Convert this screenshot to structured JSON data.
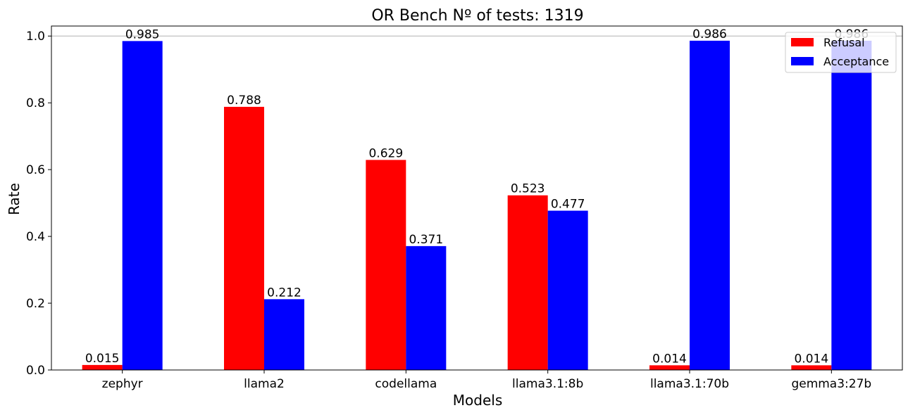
{
  "chart_data": {
    "type": "bar",
    "title": "OR Bench Nº of tests: 1319",
    "xlabel": "Models",
    "ylabel": "Rate",
    "categories": [
      "zephyr",
      "llama2",
      "codellama",
      "llama3.1:8b",
      "llama3.1:70b",
      "gemma3:27b"
    ],
    "series": [
      {
        "name": "Refusal",
        "color": "#ff0000",
        "values": [
          0.015,
          0.788,
          0.629,
          0.523,
          0.014,
          0.014
        ],
        "labels": [
          "0.015",
          "0.788",
          "0.629",
          "0.523",
          "0.014",
          "0.014"
        ]
      },
      {
        "name": "Acceptance",
        "color": "#0000ff",
        "values": [
          0.985,
          0.212,
          0.371,
          0.477,
          0.986,
          0.986
        ],
        "labels": [
          "0.985",
          "0.212",
          "0.371",
          "0.477",
          "0.986",
          "0.986"
        ]
      }
    ],
    "ylim": [
      0,
      1.03
    ],
    "yticks": [
      0.0,
      0.2,
      0.4,
      0.6,
      0.8,
      1.0
    ],
    "ytick_labels": [
      "0.0",
      "0.2",
      "0.4",
      "0.6",
      "0.8",
      "1.0"
    ],
    "reference_line": 1.0,
    "reference_line_color": "#c0c0c0",
    "legend_position": "top-right",
    "grid": false
  }
}
